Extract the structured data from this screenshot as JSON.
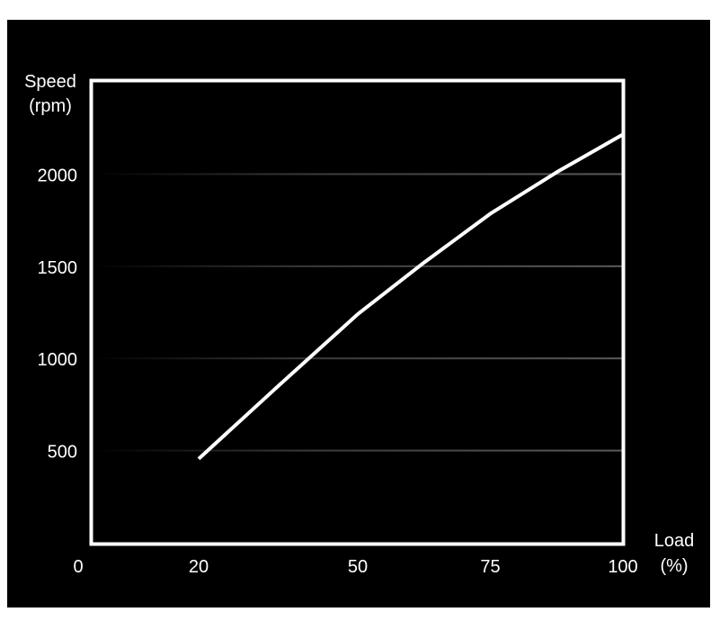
{
  "chart_data": {
    "type": "line",
    "title": "",
    "xlabel": [
      "Load",
      "(%)"
    ],
    "ylabel": [
      "Speed",
      "(rpm)"
    ],
    "xlim": [
      0,
      100
    ],
    "ylim": [
      0,
      2510
    ],
    "x_ticks": [
      0,
      20,
      50,
      75,
      100
    ],
    "y_ticks": [
      500,
      1000,
      1500,
      2000
    ],
    "grid": "horizontal",
    "colors": {
      "background": "#000000",
      "line": "#ffffff",
      "frame": "#ffffff",
      "grid": "#555555"
    },
    "series": [
      {
        "x": [
          20,
          35,
          50,
          62.5,
          75,
          87.5,
          100
        ],
        "y": [
          455,
          850,
          1240,
          1520,
          1785,
          2010,
          2215
        ]
      }
    ]
  }
}
